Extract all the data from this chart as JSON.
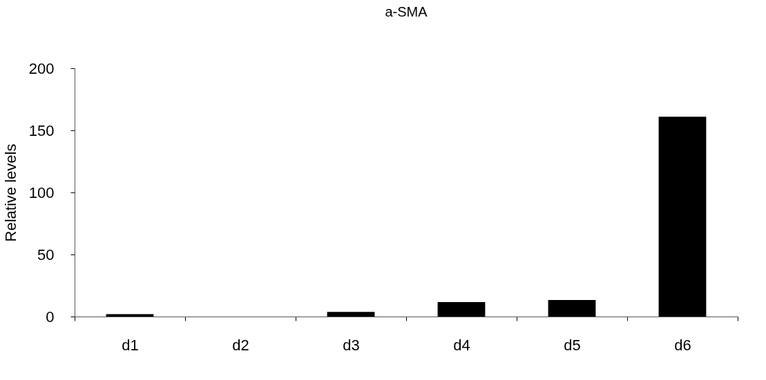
{
  "chart_data": {
    "type": "bar",
    "title": "a-SMA",
    "ylabel": "Relative levels",
    "categories": [
      "d1",
      "d2",
      "d3",
      "d4",
      "d5",
      "d6"
    ],
    "values": [
      2,
      0,
      3.7,
      11.7,
      13.3,
      161
    ],
    "color": "#000000",
    "ylim": [
      0,
      200
    ],
    "yticks": [
      0,
      50,
      100,
      150,
      200
    ],
    "grid": false
  }
}
